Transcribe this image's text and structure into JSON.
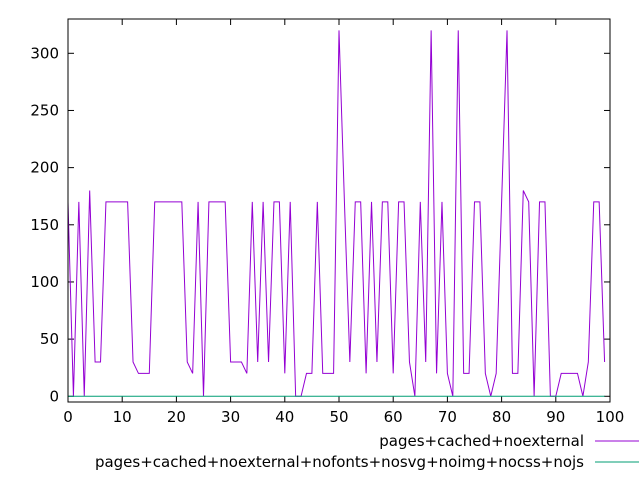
{
  "chart_data": {
    "type": "line",
    "title": "",
    "xlabel": "",
    "ylabel": "",
    "xlim": [
      0,
      100
    ],
    "ylim": [
      -5,
      330
    ],
    "xticks": [
      "0",
      "10",
      "20",
      "30",
      "40",
      "50",
      "60",
      "70",
      "80",
      "90",
      "100"
    ],
    "yticks": [
      "0",
      "50",
      "100",
      "150",
      "200",
      "250",
      "300"
    ],
    "grid": false,
    "legend_position": "bottom-right, below plot",
    "series": [
      {
        "name": "pages+cached+noexternal",
        "color": "#9400d3",
        "x": [
          0,
          1,
          2,
          3,
          4,
          5,
          6,
          7,
          8,
          9,
          10,
          11,
          12,
          13,
          14,
          15,
          16,
          17,
          18,
          19,
          20,
          21,
          22,
          23,
          24,
          25,
          26,
          27,
          28,
          29,
          30,
          31,
          32,
          33,
          34,
          35,
          36,
          37,
          38,
          39,
          40,
          41,
          42,
          43,
          44,
          45,
          46,
          47,
          48,
          49,
          50,
          51,
          52,
          53,
          54,
          55,
          56,
          57,
          58,
          59,
          60,
          61,
          62,
          63,
          64,
          65,
          66,
          67,
          68,
          69,
          70,
          71,
          72,
          73,
          74,
          75,
          76,
          77,
          78,
          79,
          80,
          81,
          82,
          83,
          84,
          85,
          86,
          87,
          88,
          89,
          90,
          91,
          92,
          93,
          94,
          95,
          96,
          97,
          98,
          99
        ],
        "values": [
          170,
          0,
          170,
          0,
          180,
          30,
          30,
          170,
          170,
          170,
          170,
          170,
          30,
          20,
          20,
          20,
          170,
          170,
          170,
          170,
          170,
          170,
          30,
          20,
          170,
          0,
          170,
          170,
          170,
          170,
          30,
          30,
          30,
          20,
          170,
          30,
          170,
          30,
          170,
          170,
          20,
          170,
          0,
          0,
          20,
          20,
          170,
          20,
          20,
          20,
          320,
          170,
          30,
          170,
          170,
          20,
          170,
          30,
          170,
          170,
          20,
          170,
          170,
          30,
          0,
          170,
          30,
          320,
          20,
          170,
          20,
          0,
          320,
          20,
          20,
          170,
          170,
          20,
          0,
          20,
          170,
          320,
          20,
          20,
          180,
          170,
          0,
          170,
          170,
          0,
          0,
          20,
          20,
          20,
          20,
          0,
          30,
          170,
          170,
          30
        ]
      },
      {
        "name": "pages+cached+noexternal+nofonts+nosvg+noimg+nocss+nojs",
        "color": "#009e73",
        "x": [
          0,
          1,
          2,
          3,
          4,
          5,
          6,
          7,
          8,
          9,
          10,
          11,
          12,
          13,
          14,
          15,
          16,
          17,
          18,
          19,
          20,
          21,
          22,
          23,
          24,
          25,
          26,
          27,
          28,
          29,
          30,
          31,
          32,
          33,
          34,
          35,
          36,
          37,
          38,
          39,
          40,
          41,
          42,
          43,
          44,
          45,
          46,
          47,
          48,
          49,
          50,
          51,
          52,
          53,
          54,
          55,
          56,
          57,
          58,
          59,
          60,
          61,
          62,
          63,
          64,
          65,
          66,
          67,
          68,
          69,
          70,
          71,
          72,
          73,
          74,
          75,
          76,
          77,
          78,
          79,
          80,
          81,
          82,
          83,
          84,
          85,
          86,
          87,
          88,
          89,
          90,
          91,
          92,
          93,
          94,
          95,
          96,
          97,
          98,
          99
        ],
        "values": [
          0,
          0,
          0,
          0,
          0,
          0,
          0,
          0,
          0,
          0,
          0,
          0,
          0,
          0,
          0,
          0,
          0,
          0,
          0,
          0,
          0,
          0,
          0,
          0,
          0,
          0,
          0,
          0,
          0,
          0,
          0,
          0,
          0,
          0,
          0,
          0,
          0,
          0,
          0,
          0,
          0,
          0,
          0,
          0,
          0,
          0,
          0,
          0,
          0,
          0,
          0,
          0,
          0,
          0,
          0,
          0,
          0,
          0,
          0,
          0,
          0,
          0,
          0,
          0,
          0,
          0,
          0,
          0,
          0,
          0,
          0,
          0,
          0,
          0,
          0,
          0,
          0,
          0,
          0,
          0,
          0,
          0,
          0,
          0,
          0,
          0,
          0,
          0,
          0,
          0,
          0,
          0,
          0,
          0,
          0,
          0,
          0,
          0,
          0,
          0
        ]
      }
    ]
  }
}
